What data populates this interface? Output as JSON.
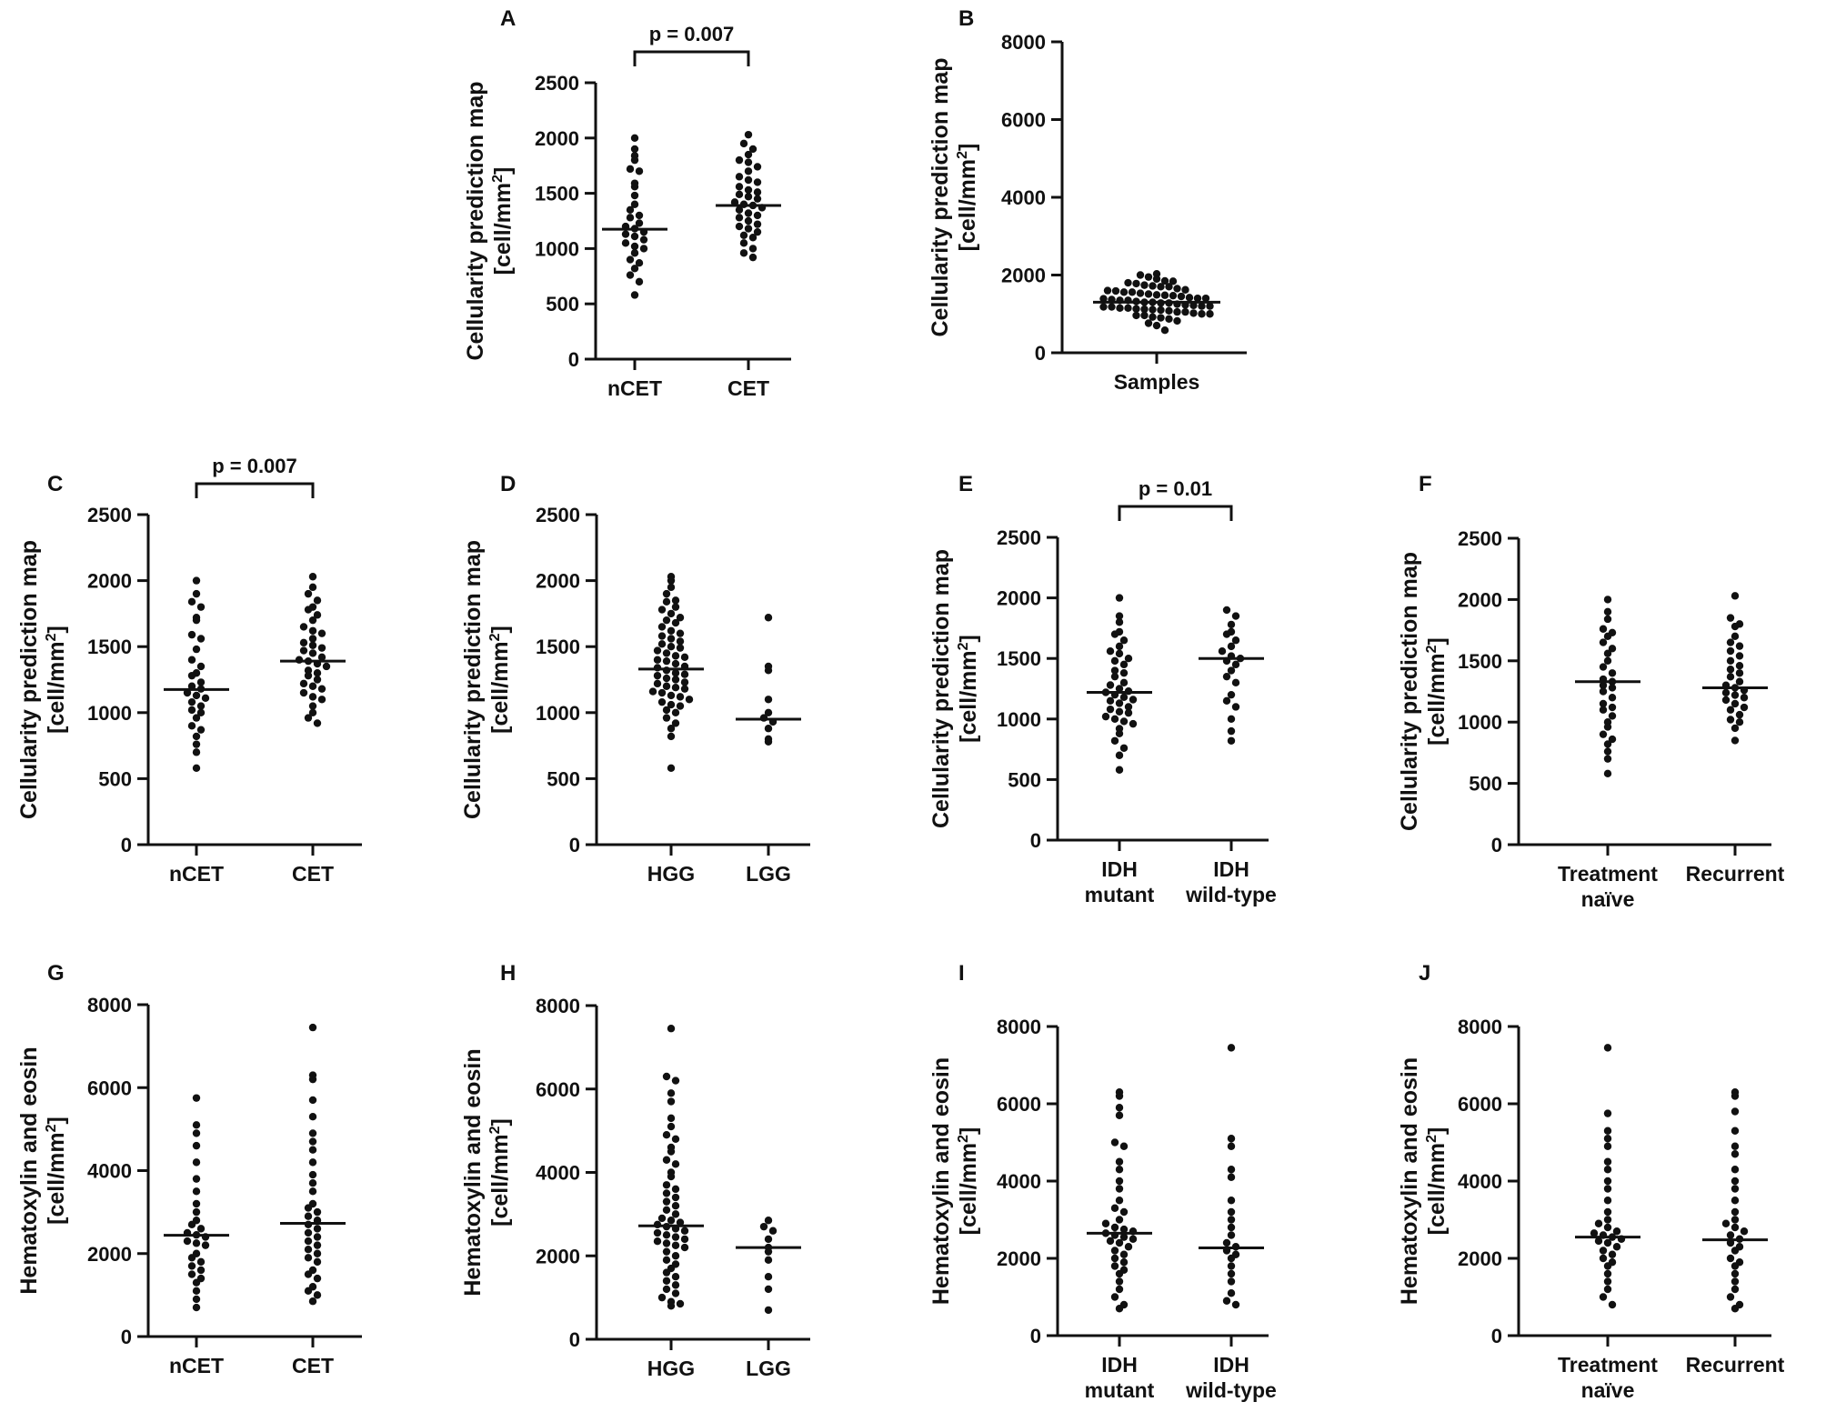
{
  "colors": {
    "ink": "#111111",
    "background": "#ffffff"
  },
  "chart_data": [
    {
      "id": "A",
      "panel_label": "A",
      "type": "scatter",
      "ylabel_line1": "Cellularity prediction map",
      "ylabel_line2": "[cell/mm",
      "ylabel_sup": "2",
      "ylabel_end": "]",
      "ylim": [
        0,
        2500
      ],
      "yticks": [
        0,
        500,
        1000,
        1500,
        2000,
        2500
      ],
      "categories": [
        {
          "line1": "nCET",
          "line2": ""
        },
        {
          "line1": "CET",
          "line2": ""
        }
      ],
      "medians": [
        1175,
        1390
      ],
      "points": [
        [
          2000,
          1900,
          1840,
          1800,
          1720,
          1700,
          1590,
          1560,
          1480,
          1400,
          1350,
          1300,
          1280,
          1230,
          1200,
          1180,
          1150,
          1130,
          1110,
          1080,
          1050,
          1020,
          1000,
          960,
          900,
          870,
          820,
          760,
          700,
          580
        ],
        [
          2030,
          1950,
          1900,
          1850,
          1800,
          1780,
          1740,
          1700,
          1650,
          1620,
          1600,
          1560,
          1530,
          1510,
          1490,
          1470,
          1450,
          1420,
          1400,
          1390,
          1370,
          1350,
          1320,
          1300,
          1280,
          1250,
          1220,
          1200,
          1180,
          1150,
          1120,
          1100,
          1050,
          1000,
          960,
          920
        ]
      ],
      "bracket": {
        "from": 0,
        "to": 1,
        "label": "p = 0.007"
      }
    },
    {
      "id": "B",
      "panel_label": "B",
      "type": "scatter",
      "ylabel_line1": "Cellularity prediction map",
      "ylabel_line2": "[cell/mm",
      "ylabel_sup": "2",
      "ylabel_end": "]",
      "ylim": [
        0,
        8000
      ],
      "yticks": [
        0,
        2000,
        4000,
        6000,
        8000
      ],
      "categories": [
        {
          "line1": "Samples",
          "line2": ""
        }
      ],
      "medians": [
        1300
      ],
      "points": [
        [
          2030,
          2000,
          1950,
          1900,
          1850,
          1840,
          1800,
          1780,
          1740,
          1720,
          1700,
          1700,
          1650,
          1620,
          1600,
          1590,
          1560,
          1560,
          1530,
          1510,
          1490,
          1480,
          1470,
          1450,
          1420,
          1400,
          1400,
          1390,
          1370,
          1350,
          1350,
          1320,
          1300,
          1300,
          1280,
          1280,
          1250,
          1230,
          1220,
          1200,
          1200,
          1180,
          1180,
          1150,
          1150,
          1130,
          1120,
          1110,
          1100,
          1080,
          1050,
          1050,
          1020,
          1000,
          1000,
          960,
          960,
          920,
          900,
          870,
          820,
          760,
          700,
          580
        ]
      ],
      "bracket": null
    },
    {
      "id": "C",
      "panel_label": "C",
      "type": "scatter",
      "ylabel_line1": "Cellularity prediction map",
      "ylabel_line2": "[cell/mm",
      "ylabel_sup": "2",
      "ylabel_end": "]",
      "ylim": [
        0,
        2500
      ],
      "yticks": [
        0,
        500,
        1000,
        1500,
        2000,
        2500
      ],
      "categories": [
        {
          "line1": "nCET",
          "line2": ""
        },
        {
          "line1": "CET",
          "line2": ""
        }
      ],
      "medians": [
        1175,
        1390
      ],
      "points": [
        [
          2000,
          1900,
          1840,
          1800,
          1720,
          1700,
          1590,
          1560,
          1480,
          1400,
          1350,
          1300,
          1280,
          1230,
          1200,
          1180,
          1150,
          1130,
          1110,
          1080,
          1050,
          1020,
          1000,
          960,
          900,
          870,
          820,
          760,
          700,
          580
        ],
        [
          2030,
          1950,
          1900,
          1850,
          1800,
          1780,
          1740,
          1700,
          1650,
          1620,
          1600,
          1560,
          1530,
          1510,
          1490,
          1470,
          1450,
          1420,
          1400,
          1390,
          1370,
          1350,
          1320,
          1300,
          1280,
          1250,
          1220,
          1200,
          1180,
          1150,
          1120,
          1100,
          1050,
          1000,
          960,
          920
        ]
      ],
      "bracket": {
        "from": 0,
        "to": 1,
        "label": "p = 0.007"
      }
    },
    {
      "id": "D",
      "panel_label": "D",
      "type": "scatter",
      "ylabel_line1": "Cellularity prediction map",
      "ylabel_line2": "[cell/mm",
      "ylabel_sup": "2",
      "ylabel_end": "]",
      "ylim": [
        0,
        2500
      ],
      "yticks": [
        0,
        500,
        1000,
        1500,
        2000,
        2500
      ],
      "categories": [
        {
          "line1": "HGG",
          "line2": ""
        },
        {
          "line1": "LGG",
          "line2": ""
        }
      ],
      "medians": [
        1330,
        950
      ],
      "points": [
        [
          2030,
          2000,
          1950,
          1900,
          1850,
          1840,
          1800,
          1780,
          1750,
          1720,
          1700,
          1680,
          1650,
          1620,
          1600,
          1580,
          1560,
          1540,
          1520,
          1500,
          1490,
          1470,
          1450,
          1430,
          1420,
          1400,
          1390,
          1370,
          1350,
          1340,
          1320,
          1300,
          1290,
          1280,
          1260,
          1250,
          1230,
          1220,
          1200,
          1190,
          1180,
          1160,
          1150,
          1130,
          1120,
          1100,
          1080,
          1060,
          1050,
          1020,
          1000,
          960,
          920,
          880,
          820,
          580
        ],
        [
          1720,
          1350,
          1320,
          1100,
          1000,
          960,
          930,
          880,
          800,
          780
        ]
      ],
      "bracket": null
    },
    {
      "id": "E",
      "panel_label": "E",
      "type": "scatter",
      "ylabel_line1": "Cellularity prediction map",
      "ylabel_line2": "[cell/mm",
      "ylabel_sup": "2",
      "ylabel_end": "]",
      "ylim": [
        0,
        2500
      ],
      "yticks": [
        0,
        500,
        1000,
        1500,
        2000,
        2500
      ],
      "categories": [
        {
          "line1": "IDH",
          "line2": "mutant"
        },
        {
          "line1": "IDH",
          "line2": "wild-type"
        }
      ],
      "medians": [
        1220,
        1500
      ],
      "points": [
        [
          2000,
          1850,
          1800,
          1720,
          1700,
          1650,
          1600,
          1560,
          1540,
          1500,
          1480,
          1450,
          1400,
          1380,
          1350,
          1300,
          1280,
          1250,
          1230,
          1220,
          1200,
          1180,
          1160,
          1150,
          1130,
          1100,
          1080,
          1060,
          1050,
          1020,
          1000,
          980,
          960,
          920,
          880,
          820,
          760,
          700,
          580
        ],
        [
          1900,
          1850,
          1780,
          1720,
          1700,
          1650,
          1600,
          1560,
          1520,
          1500,
          1480,
          1450,
          1400,
          1350,
          1300,
          1200,
          1150,
          1100,
          1000,
          900,
          820
        ]
      ],
      "bracket": {
        "from": 0,
        "to": 1,
        "label": "p = 0.01"
      }
    },
    {
      "id": "F",
      "panel_label": "F",
      "type": "scatter",
      "ylabel_line1": "Cellularity prediction map",
      "ylabel_line2": "[cell/mm",
      "ylabel_sup": "2",
      "ylabel_end": "]",
      "ylim": [
        0,
        2500
      ],
      "yticks": [
        0,
        500,
        1000,
        1500,
        2000,
        2500
      ],
      "categories": [
        {
          "line1": "Treatment",
          "line2": "naïve"
        },
        {
          "line1": "Recurrent",
          "line2": ""
        }
      ],
      "medians": [
        1330,
        1280
      ],
      "points": [
        [
          2000,
          1900,
          1840,
          1760,
          1730,
          1700,
          1650,
          1600,
          1560,
          1500,
          1450,
          1400,
          1350,
          1330,
          1300,
          1280,
          1250,
          1200,
          1150,
          1120,
          1100,
          1050,
          1000,
          960,
          900,
          860,
          820,
          760,
          700,
          580
        ],
        [
          2030,
          1850,
          1800,
          1780,
          1700,
          1650,
          1620,
          1580,
          1540,
          1500,
          1460,
          1430,
          1400,
          1370,
          1330,
          1300,
          1280,
          1260,
          1240,
          1220,
          1200,
          1180,
          1150,
          1120,
          1100,
          1060,
          1020,
          1000,
          950,
          850
        ]
      ],
      "bracket": null
    },
    {
      "id": "G",
      "panel_label": "G",
      "type": "scatter",
      "ylabel_line1": "Hematoxylin and eosin",
      "ylabel_line2": "[cell/mm",
      "ylabel_sup": "2",
      "ylabel_end": "]",
      "ylim": [
        0,
        8000
      ],
      "yticks": [
        0,
        2000,
        4000,
        6000,
        8000
      ],
      "categories": [
        {
          "line1": "nCET",
          "line2": ""
        },
        {
          "line1": "CET",
          "line2": ""
        }
      ],
      "medians": [
        2440,
        2730
      ],
      "points": [
        [
          5750,
          5100,
          4900,
          4600,
          4200,
          3800,
          3500,
          3200,
          3000,
          2800,
          2700,
          2600,
          2500,
          2450,
          2400,
          2300,
          2250,
          2200,
          2000,
          1900,
          1800,
          1700,
          1600,
          1500,
          1400,
          1300,
          1100,
          900,
          700
        ],
        [
          7450,
          6300,
          6200,
          5700,
          5300,
          4900,
          4700,
          4500,
          4200,
          3900,
          3700,
          3500,
          3200,
          3100,
          3000,
          2900,
          2800,
          2700,
          2600,
          2500,
          2400,
          2300,
          2200,
          2100,
          2000,
          1900,
          1800,
          1600,
          1500,
          1400,
          1200,
          1100,
          1000,
          850
        ]
      ],
      "bracket": null
    },
    {
      "id": "H",
      "panel_label": "H",
      "type": "scatter",
      "ylabel_line1": "Hematoxylin and eosin",
      "ylabel_line2": "[cell/mm",
      "ylabel_sup": "2",
      "ylabel_end": "]",
      "ylim": [
        0,
        8000
      ],
      "yticks": [
        0,
        2000,
        4000,
        6000,
        8000
      ],
      "categories": [
        {
          "line1": "HGG",
          "line2": ""
        },
        {
          "line1": "LGG",
          "line2": ""
        }
      ],
      "medians": [
        2720,
        2200
      ],
      "points": [
        [
          7450,
          6300,
          6200,
          5900,
          5700,
          5300,
          5100,
          4900,
          4800,
          4600,
          4500,
          4300,
          4200,
          4000,
          3900,
          3700,
          3600,
          3500,
          3400,
          3300,
          3200,
          3100,
          3000,
          2900,
          2850,
          2800,
          2750,
          2700,
          2650,
          2600,
          2550,
          2500,
          2450,
          2400,
          2350,
          2300,
          2250,
          2200,
          2100,
          2000,
          1900,
          1800,
          1700,
          1600,
          1500,
          1400,
          1300,
          1200,
          1100,
          1000,
          900,
          850,
          800
        ],
        [
          2850,
          2700,
          2600,
          2400,
          2200,
          2100,
          1900,
          1500,
          1200,
          700
        ]
      ],
      "bracket": null
    },
    {
      "id": "I",
      "panel_label": "I",
      "type": "scatter",
      "ylabel_line1": "Hematoxylin and eosin",
      "ylabel_line2": "[cell/mm",
      "ylabel_sup": "2",
      "ylabel_end": "]",
      "ylim": [
        0,
        8000
      ],
      "yticks": [
        0,
        2000,
        4000,
        6000,
        8000
      ],
      "categories": [
        {
          "line1": "IDH",
          "line2": "mutant"
        },
        {
          "line1": "IDH",
          "line2": "wild-type"
        }
      ],
      "medians": [
        2650,
        2270
      ],
      "points": [
        [
          6300,
          6200,
          5900,
          5700,
          5000,
          4900,
          4500,
          4300,
          4000,
          3800,
          3500,
          3300,
          3200,
          3000,
          2900,
          2800,
          2750,
          2700,
          2650,
          2600,
          2550,
          2500,
          2450,
          2400,
          2300,
          2200,
          2100,
          2000,
          1900,
          1800,
          1700,
          1600,
          1400,
          1200,
          1000,
          800,
          700
        ],
        [
          7450,
          5100,
          4900,
          4300,
          4100,
          3500,
          3200,
          3000,
          2800,
          2600,
          2400,
          2300,
          2200,
          2100,
          2000,
          1800,
          1600,
          1400,
          1100,
          900,
          800
        ]
      ],
      "bracket": null
    },
    {
      "id": "J",
      "panel_label": "J",
      "type": "scatter",
      "ylabel_line1": "Hematoxylin and eosin",
      "ylabel_line2": "[cell/mm",
      "ylabel_sup": "2",
      "ylabel_end": "]",
      "ylim": [
        0,
        8000
      ],
      "yticks": [
        0,
        2000,
        4000,
        6000,
        8000
      ],
      "categories": [
        {
          "line1": "Treatment",
          "line2": "naïve"
        },
        {
          "line1": "Recurrent",
          "line2": ""
        }
      ],
      "medians": [
        2550,
        2480
      ],
      "points": [
        [
          7450,
          5750,
          5300,
          5100,
          4900,
          4500,
          4300,
          4000,
          3800,
          3500,
          3200,
          3000,
          2900,
          2800,
          2700,
          2650,
          2600,
          2550,
          2500,
          2450,
          2400,
          2300,
          2200,
          2100,
          2000,
          1900,
          1800,
          1600,
          1400,
          1200,
          1000,
          800
        ],
        [
          6300,
          6200,
          5800,
          5300,
          4900,
          4700,
          4300,
          4000,
          3800,
          3500,
          3200,
          3000,
          2900,
          2800,
          2700,
          2600,
          2500,
          2400,
          2300,
          2200,
          2000,
          1900,
          1800,
          1600,
          1400,
          1200,
          1000,
          800,
          700
        ]
      ],
      "bracket": null
    }
  ]
}
